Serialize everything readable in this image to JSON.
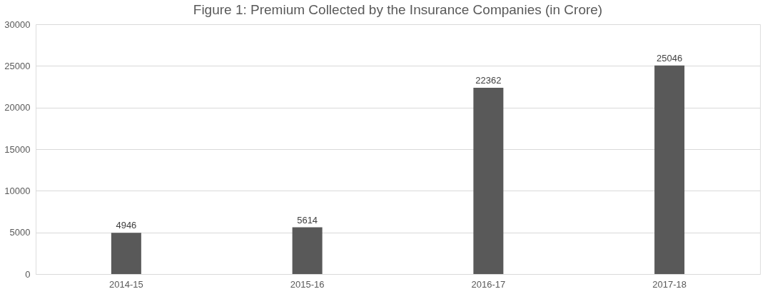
{
  "chart_data": {
    "type": "bar",
    "title": "Figure 1: Premium  Collected by the Insurance Companies (in Crore)",
    "categories": [
      "2014-15",
      "2015-16",
      "2016-17",
      "2017-18"
    ],
    "values": [
      4946,
      5614,
      22362,
      25046
    ],
    "color": "#595959",
    "ylim": [
      0,
      30000
    ],
    "yticks": [
      0,
      5000,
      10000,
      15000,
      20000,
      25000,
      30000
    ],
    "grid": "y",
    "data_labels": true
  }
}
